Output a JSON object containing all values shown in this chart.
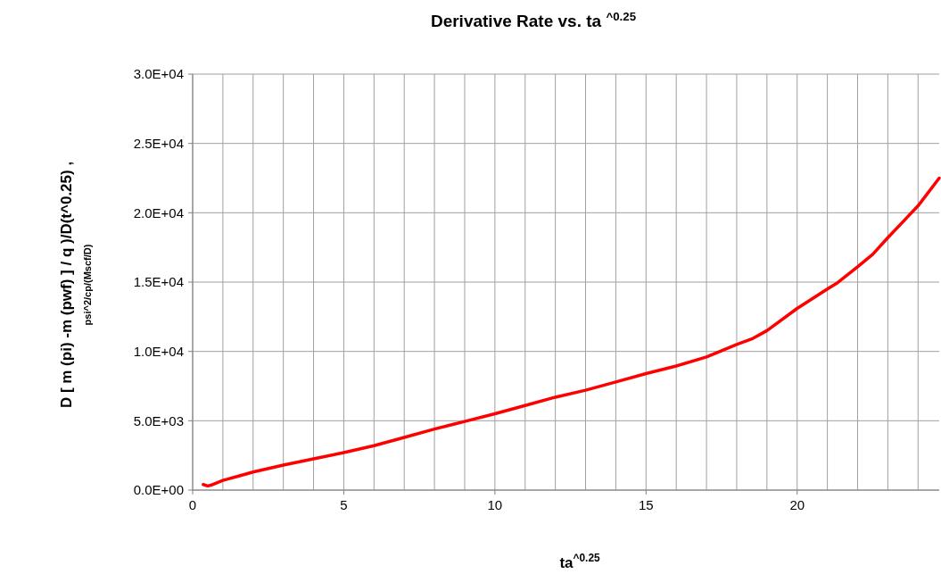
{
  "chart_data": {
    "type": "line",
    "title": "Derivative Rate vs. ta $^{^0.25}$",
    "xlabel": "ta$^{^0.25}$",
    "ylabel": "D [ m (pi)  -m (pwf) ] /  q )/D(t^0.25) ,\npsi^2/cp/(Mscf/D)",
    "x": [
      0.35,
      0.5,
      0.6,
      1,
      1.5,
      2,
      3,
      4,
      5,
      6,
      7,
      8,
      9,
      10,
      11,
      12,
      13,
      14,
      15,
      16,
      17,
      18,
      18.5,
      19,
      20,
      21,
      21.3,
      22,
      22.5,
      23,
      24,
      24.7
    ],
    "series": [
      {
        "color": "#ff0000",
        "values": [
          400,
          300,
          350,
          700,
          1000,
          1300,
          1800,
          2250,
          2700,
          3200,
          3800,
          4400,
          4950,
          5500,
          6100,
          6700,
          7200,
          7800,
          8400,
          8950,
          9600,
          10500,
          10900,
          11500,
          13100,
          14500,
          14900,
          16100,
          17000,
          18200,
          20500,
          22500
        ]
      }
    ],
    "xlim": [
      0,
      24.7
    ],
    "ylim": [
      0,
      30000
    ],
    "xticks": [
      0,
      {
        "value": 1,
        "label": null
      },
      {
        "value": 2,
        "label": null
      },
      {
        "value": 3,
        "label": null
      },
      {
        "value": 4,
        "label": null
      },
      5,
      {
        "value": 6,
        "label": null
      },
      {
        "value": 7,
        "label": null
      },
      {
        "value": 8,
        "label": null
      },
      {
        "value": 9,
        "label": null
      },
      10,
      {
        "value": 11,
        "label": null
      },
      {
        "value": 12,
        "label": null
      },
      {
        "value": 13,
        "label": null
      },
      {
        "value": 14,
        "label": null
      },
      15,
      {
        "value": 16,
        "label": null
      },
      {
        "value": 17,
        "label": null
      },
      {
        "value": 18,
        "label": null
      },
      {
        "value": 19,
        "label": null
      },
      20,
      {
        "value": 21,
        "label": null
      },
      {
        "value": 22,
        "label": null
      },
      {
        "value": 23,
        "label": null
      },
      {
        "value": 24,
        "label": null
      }
    ],
    "yticks": [
      {
        "value": 0,
        "label": "0.0E+00"
      },
      {
        "value": 5000,
        "label": "5.0E+03"
      },
      {
        "value": 10000,
        "label": "1.0E+04"
      },
      {
        "value": 15000,
        "label": "1.5E+04"
      },
      {
        "value": 20000,
        "label": "2.0E+04"
      },
      {
        "value": 25000,
        "label": "2.5E+04"
      },
      {
        "value": 30000,
        "label": "3.0E+04"
      }
    ],
    "grid": true,
    "marker": "none",
    "line_style": "solid"
  }
}
